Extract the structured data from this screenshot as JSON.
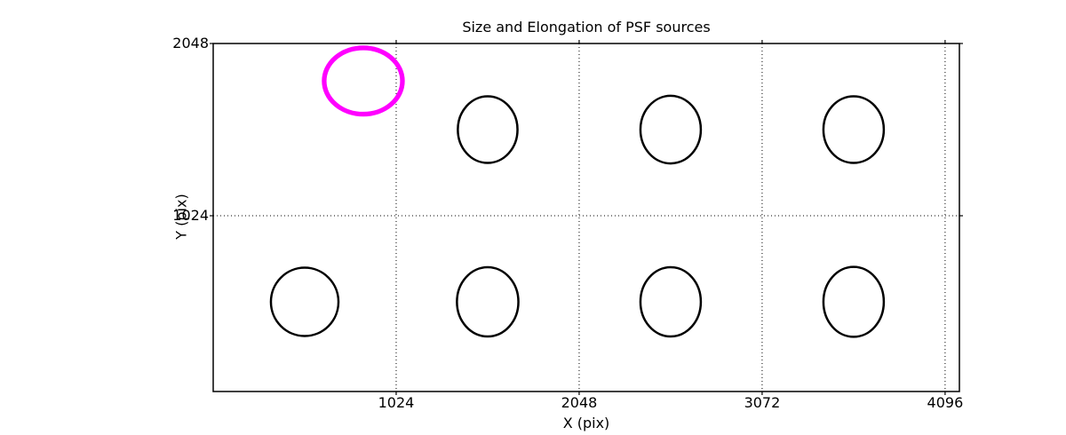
{
  "title": "Size and Elongation of PSF sources",
  "axes": {
    "xlabel": "X (pix)",
    "ylabel": "Y (pix)"
  },
  "colors": {
    "foreground": "#000000",
    "background": "#ffffff",
    "highlight": "#ff00ff"
  },
  "chart_data": {
    "type": "scatter",
    "title": "Size and Elongation of PSF sources",
    "xlabel": "X (pix)",
    "ylabel": "Y (pix)",
    "xlim": [
      0,
      4176
    ],
    "ylim": [
      -21,
      2048
    ],
    "xticks": [
      1024,
      2048,
      3072,
      4096
    ],
    "xtick_labels": [
      "1024",
      "2048",
      "3072",
      "4096"
    ],
    "yticks": [
      1024,
      2048
    ],
    "ytick_labels": [
      "1024",
      "2048"
    ],
    "grid": "dotted",
    "legend": "none",
    "marker_style": "open ellipses; radii in data units; one magenta highlighted outlier source, others black",
    "sources": [
      {
        "x": 840,
        "y": 1825,
        "rx": 219,
        "ry": 197,
        "color": "#ff00ff",
        "linewidth": 5.3
      },
      {
        "x": 1536,
        "y": 1536,
        "rx": 167,
        "ry": 198,
        "color": "#000000",
        "linewidth": 2.5
      },
      {
        "x": 2560,
        "y": 1536,
        "rx": 169,
        "ry": 201,
        "color": "#000000",
        "linewidth": 2.5
      },
      {
        "x": 3584,
        "y": 1536,
        "rx": 169,
        "ry": 198,
        "color": "#000000",
        "linewidth": 2.5
      },
      {
        "x": 512,
        "y": 512,
        "rx": 189,
        "ry": 203,
        "color": "#000000",
        "linewidth": 2.5
      },
      {
        "x": 1536,
        "y": 512,
        "rx": 172,
        "ry": 206,
        "color": "#000000",
        "linewidth": 2.5
      },
      {
        "x": 2560,
        "y": 512,
        "rx": 169,
        "ry": 206,
        "color": "#000000",
        "linewidth": 2.5
      },
      {
        "x": 3584,
        "y": 512,
        "rx": 169,
        "ry": 208,
        "color": "#000000",
        "linewidth": 2.5
      }
    ]
  }
}
